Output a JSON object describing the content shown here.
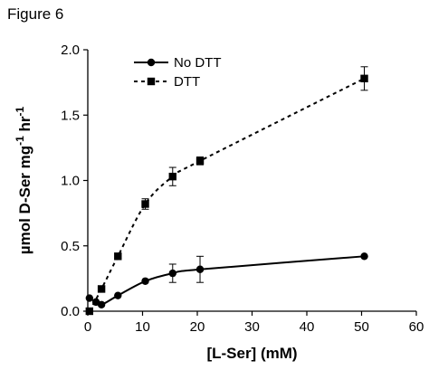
{
  "figure_label": "Figure 6",
  "chart_data": {
    "type": "line",
    "xlabel": "[L-Ser] (mM)",
    "ylabel_prefix": "µmol D-Ser mg",
    "ylabel_sup1": "-1",
    "ylabel_mid": " hr",
    "ylabel_sup2": "-1",
    "xlim": [
      0,
      60
    ],
    "ylim": [
      0,
      2.0
    ],
    "x_ticks": [
      0,
      10,
      20,
      30,
      40,
      50,
      60
    ],
    "y_ticks": [
      0.0,
      0.5,
      1.0,
      1.5,
      2.0
    ],
    "x_tick_labels": [
      "0",
      "10",
      "20",
      "30",
      "40",
      "50",
      "60"
    ],
    "y_tick_labels": [
      "0.0",
      "0.5",
      "1.0",
      "1.5",
      "2.0"
    ],
    "grid": false,
    "legend_position": "top-left",
    "series": [
      {
        "name": "No DTT",
        "marker": "circle",
        "line": "solid",
        "points": [
          {
            "x": 0.3,
            "y": 0.1,
            "err": 0
          },
          {
            "x": 1.5,
            "y": 0.07,
            "err": 0
          },
          {
            "x": 2.5,
            "y": 0.05,
            "err": 0
          },
          {
            "x": 5.5,
            "y": 0.12,
            "err": 0
          },
          {
            "x": 10.5,
            "y": 0.23,
            "err": 0
          },
          {
            "x": 15.5,
            "y": 0.29,
            "err": 0.07
          },
          {
            "x": 20.5,
            "y": 0.32,
            "err": 0.1
          },
          {
            "x": 50.5,
            "y": 0.42,
            "err": 0
          }
        ]
      },
      {
        "name": "DTT",
        "marker": "square",
        "line": "dashed",
        "points": [
          {
            "x": 0.3,
            "y": 0.0,
            "err": 0
          },
          {
            "x": 2.5,
            "y": 0.17,
            "err": 0
          },
          {
            "x": 5.5,
            "y": 0.42,
            "err": 0
          },
          {
            "x": 10.5,
            "y": 0.82,
            "err": 0.04
          },
          {
            "x": 15.5,
            "y": 1.03,
            "err": 0.07
          },
          {
            "x": 20.5,
            "y": 1.15,
            "err": 0.03
          },
          {
            "x": 50.5,
            "y": 1.78,
            "err": 0.09
          }
        ]
      }
    ]
  }
}
